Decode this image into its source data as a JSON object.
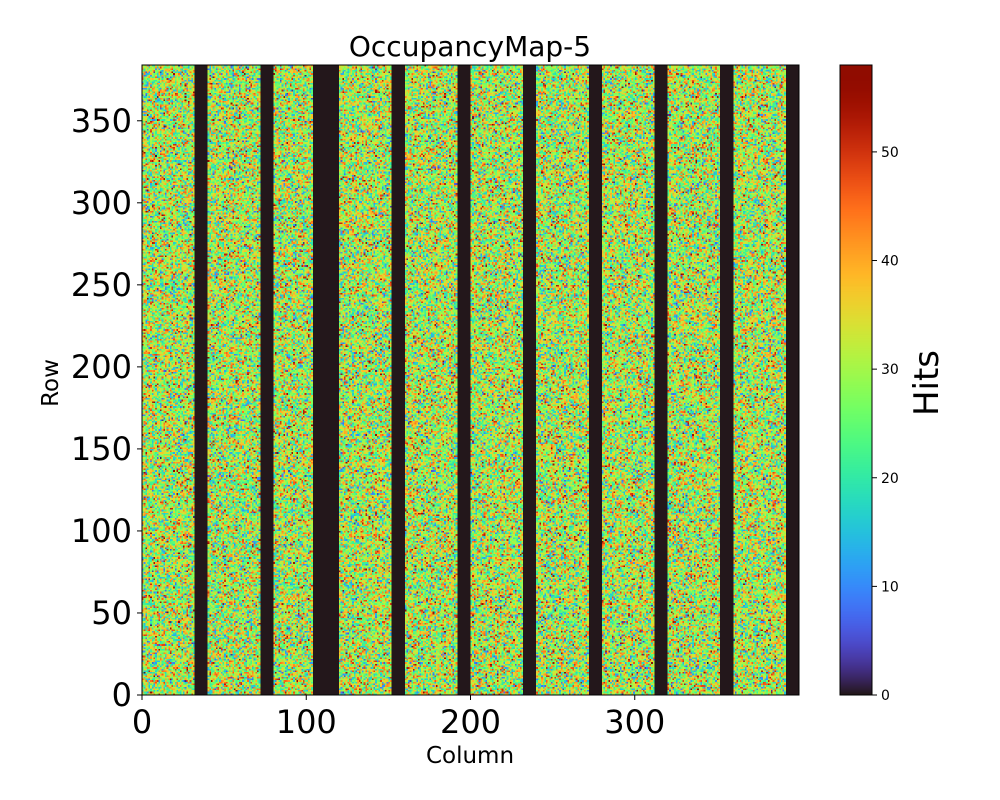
{
  "chart_data": {
    "type": "heatmap",
    "title": "OccupancyMap-5",
    "xlabel": "Column",
    "ylabel": "Row",
    "xlim": [
      0,
      400
    ],
    "ylim": [
      0,
      384
    ],
    "x_ticks": [
      0,
      100,
      200,
      300
    ],
    "x_tick_labels": [
      "0",
      "100",
      "200",
      "300"
    ],
    "y_ticks": [
      0,
      50,
      100,
      150,
      200,
      250,
      300,
      350
    ],
    "y_tick_labels": [
      "0",
      "50",
      "100",
      "150",
      "200",
      "250",
      "300",
      "350"
    ],
    "colorbar": {
      "label": "Hits",
      "range": [
        0,
        58
      ],
      "ticks": [
        0,
        10,
        20,
        30,
        40,
        50
      ],
      "tick_labels": [
        "0",
        "10",
        "20",
        "30",
        "40",
        "50"
      ],
      "colormap": "turbo"
    },
    "value_range": [
      0,
      58
    ],
    "zero_column_ranges": [
      [
        32,
        40
      ],
      [
        72,
        80
      ],
      [
        104,
        120
      ],
      [
        152,
        160
      ],
      [
        192,
        200
      ],
      [
        232,
        240
      ],
      [
        272,
        280
      ],
      [
        312,
        320
      ],
      [
        352,
        360
      ],
      [
        392,
        400
      ]
    ]
  }
}
